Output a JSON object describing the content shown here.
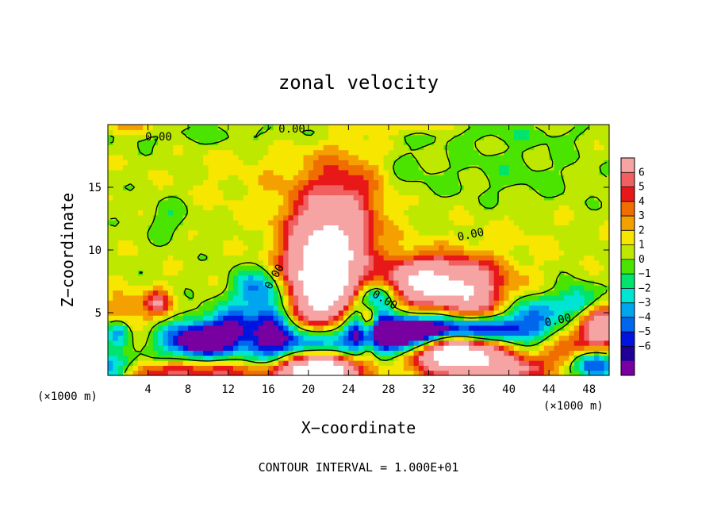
{
  "chart_data": {
    "type": "heatmap",
    "title": "zonal velocity",
    "xlabel": "X−coordinate",
    "ylabel": "Z−coordinate",
    "x_unit_label": "(×1000 m)",
    "z_unit_label": "(×1000 m)",
    "xlim": [
      0,
      50
    ],
    "ylim": [
      0,
      20
    ],
    "x_ticks": [
      4,
      8,
      12,
      16,
      20,
      24,
      28,
      32,
      36,
      40,
      44,
      48
    ],
    "y_ticks": [
      5,
      10,
      15
    ],
    "colorbar": {
      "levels": [
        6,
        5,
        4,
        3,
        2,
        1,
        0,
        -1,
        -2,
        -3,
        -4,
        -5,
        -6
      ],
      "level_labels": [
        "6",
        "5",
        "4",
        "3",
        "2",
        "1",
        "0",
        "−1",
        "−2",
        "−3",
        "−4",
        "−5",
        "−6"
      ],
      "colors": [
        "#f5a3a3",
        "#f06060",
        "#e81818",
        "#f06e00",
        "#f4a000",
        "#f6e600",
        "#bfe800",
        "#4be400",
        "#00e46e",
        "#00e4d4",
        "#00a5f0",
        "#0066ee",
        "#0014e0",
        "#1e0096",
        "#7800a0"
      ]
    },
    "contour_interval_text": "CONTOUR INTERVAL = 1.000E+01",
    "contour_labels": [
      "0.00",
      "0.00",
      "0.00",
      "0.00",
      "0.00",
      "0.00"
    ],
    "blobs": [
      {
        "x": 21.5,
        "z": 7.5,
        "sx": 2.6,
        "sz": 3.2,
        "v": 12.0
      },
      {
        "x": 22.5,
        "z": 11.5,
        "sx": 3.2,
        "sz": 3.5,
        "v": 4.5
      },
      {
        "x": 24.0,
        "z": 14.5,
        "sx": 2.5,
        "sz": 3.0,
        "v": 1.8
      },
      {
        "x": 34.0,
        "z": 7.3,
        "sx": 3.5,
        "sz": 1.5,
        "v": 10.0
      },
      {
        "x": 30.5,
        "z": 7.8,
        "sx": 1.5,
        "sz": 1.2,
        "v": 4.0
      },
      {
        "x": 34.5,
        "z": 1.8,
        "sx": 3.2,
        "sz": 1.1,
        "v": 14.0
      },
      {
        "x": 34.5,
        "z": 3.6,
        "sx": 5.5,
        "sz": 0.8,
        "v": -10.0
      },
      {
        "x": 29.0,
        "z": 3.0,
        "sx": 2.5,
        "sz": 1.2,
        "v": -7.0
      },
      {
        "x": 26.0,
        "z": 4.2,
        "sx": 0.7,
        "sz": 1.0,
        "v": 9.0
      },
      {
        "x": 25.5,
        "z": 4.5,
        "sx": 1.5,
        "sz": 1.5,
        "v": -6.0
      },
      {
        "x": 26.5,
        "z": 6.2,
        "sx": 1.3,
        "sz": 0.8,
        "v": -5.0
      },
      {
        "x": 26.0,
        "z": 2.0,
        "sx": 0.7,
        "sz": 0.8,
        "v": 4.0
      },
      {
        "x": 21.0,
        "z": 0.5,
        "sx": 3.0,
        "sz": 1.0,
        "v": 14.0
      },
      {
        "x": 21.0,
        "z": 2.5,
        "sx": 4.0,
        "sz": 1.2,
        "v": -8.0
      },
      {
        "x": 16.5,
        "z": 4.0,
        "sx": 1.5,
        "sz": 2.5,
        "v": -5.0
      },
      {
        "x": 9.0,
        "z": 2.8,
        "sx": 2.5,
        "sz": 1.0,
        "v": -9.0
      },
      {
        "x": 12.5,
        "z": 4.0,
        "sx": 2.0,
        "sz": 1.2,
        "v": -5.0
      },
      {
        "x": 5.0,
        "z": 5.8,
        "sx": 1.0,
        "sz": 0.8,
        "v": 5.0
      },
      {
        "x": 1.5,
        "z": 5.0,
        "sx": 1.5,
        "sz": 1.2,
        "v": 3.0
      },
      {
        "x": 1.0,
        "z": 3.5,
        "sx": 1.0,
        "sz": 0.8,
        "v": -5.0
      },
      {
        "x": 0.5,
        "z": 0.5,
        "sx": 1.5,
        "sz": 0.8,
        "v": -6.0
      },
      {
        "x": 8.0,
        "z": 0.3,
        "sx": 6.0,
        "sz": 0.6,
        "v": 5.0
      },
      {
        "x": 14.5,
        "z": 7.0,
        "sx": 1.5,
        "sz": 1.0,
        "v": -4.0
      },
      {
        "x": 42.0,
        "z": 5.0,
        "sx": 2.0,
        "sz": 1.0,
        "v": -4.0
      },
      {
        "x": 47.0,
        "z": 5.8,
        "sx": 1.5,
        "sz": 0.9,
        "v": -5.0
      },
      {
        "x": 49.0,
        "z": 4.0,
        "sx": 1.5,
        "sz": 1.2,
        "v": 9.0
      },
      {
        "x": 46.0,
        "z": 2.0,
        "sx": 2.0,
        "sz": 1.0,
        "v": 3.5
      },
      {
        "x": 48.5,
        "z": 1.0,
        "sx": 1.5,
        "sz": 0.8,
        "v": -7.0
      },
      {
        "x": 40.0,
        "z": 0.5,
        "sx": 2.5,
        "sz": 0.7,
        "v": 6.0
      },
      {
        "x": 37.0,
        "z": 5.5,
        "sx": 2.0,
        "sz": 1.2,
        "v": 3.0
      },
      {
        "x": 40.0,
        "z": 12.5,
        "sx": 4.0,
        "sz": 3.0,
        "v": 0.6
      },
      {
        "x": 15.0,
        "z": 15.5,
        "sx": 5.0,
        "sz": 2.5,
        "v": 0.7
      },
      {
        "x": 40.0,
        "z": 16.0,
        "sx": 5.0,
        "sz": 2.0,
        "v": -1.3
      },
      {
        "x": 6.0,
        "z": 12.5,
        "sx": 1.5,
        "sz": 1.0,
        "v": -1.5
      },
      {
        "x": 30.0,
        "z": 16.5,
        "sx": 2.0,
        "sz": 1.5,
        "v": -0.8
      },
      {
        "x": 10.0,
        "z": 19.2,
        "sx": 10.0,
        "sz": 0.6,
        "v": -1.0
      },
      {
        "x": 40.0,
        "z": 19.3,
        "sx": 8.0,
        "sz": 0.5,
        "v": -0.8
      },
      {
        "x": 2.0,
        "z": 19.7,
        "sx": 2.0,
        "sz": 0.4,
        "v": 2.0
      },
      {
        "x": 30.0,
        "z": 19.8,
        "sx": 3.0,
        "sz": 0.4,
        "v": 1.5
      }
    ]
  }
}
